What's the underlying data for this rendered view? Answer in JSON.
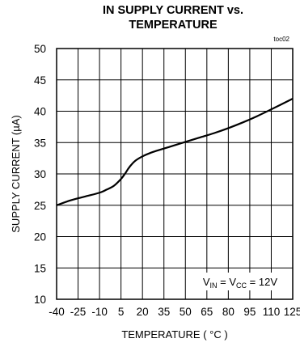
{
  "chart_data": {
    "type": "line",
    "title_line1": "IN SUPPLY CURRENT vs.",
    "title_line2": "TEMPERATURE",
    "figure_tag": "toc02",
    "xlabel": "TEMPERATURE ( °C )",
    "ylabel": "SUPPLY CURRENT  (µA)",
    "xlim": [
      -40,
      125
    ],
    "ylim": [
      10,
      50
    ],
    "x_ticks": [
      -40,
      -25,
      -10,
      5,
      20,
      35,
      50,
      65,
      80,
      95,
      110,
      125
    ],
    "y_ticks": [
      10,
      15,
      20,
      25,
      30,
      35,
      40,
      45,
      50
    ],
    "grid": true,
    "annotation": {
      "v1": "V",
      "v1_sub": "IN",
      "eq": " = ",
      "v2": "V",
      "v2_sub": "CC",
      "rest": " = 12V"
    },
    "series": [
      {
        "color": "#000000",
        "x": [
          -40,
          -30,
          -20,
          -10,
          -5,
          0,
          5,
          8,
          10,
          12,
          15,
          20,
          25,
          30,
          40,
          50,
          60,
          70,
          80,
          90,
          100,
          110,
          125
        ],
        "y": [
          25.0,
          25.8,
          26.4,
          27.0,
          27.5,
          28.1,
          29.2,
          30.1,
          30.8,
          31.4,
          32.1,
          32.8,
          33.3,
          33.7,
          34.4,
          35.1,
          35.8,
          36.5,
          37.3,
          38.2,
          39.2,
          40.3,
          42.0
        ]
      }
    ]
  }
}
